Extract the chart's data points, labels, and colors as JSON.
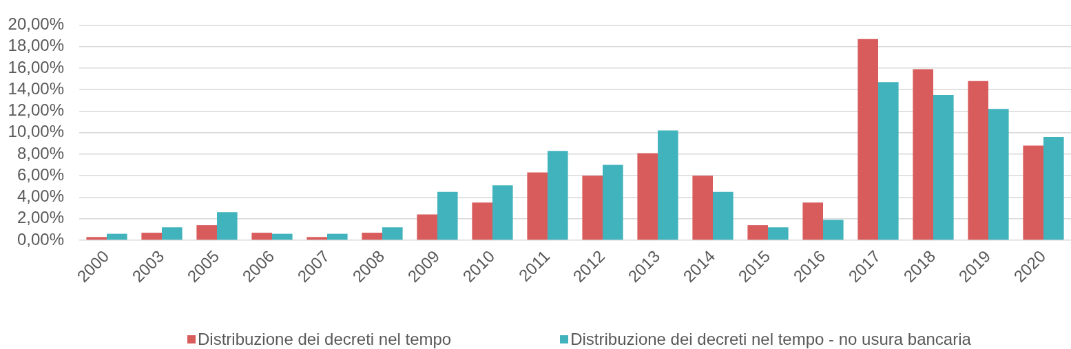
{
  "chart_data": {
    "type": "bar",
    "categories": [
      "2000",
      "2003",
      "2005",
      "2006",
      "2007",
      "2008",
      "2009",
      "2010",
      "2011",
      "2012",
      "2013",
      "2014",
      "2015",
      "2016",
      "2017",
      "2018",
      "2019",
      "2020"
    ],
    "series": [
      {
        "name": "Distribuzione dei decreti nel tempo",
        "color": "#d95c5c",
        "values": [
          0.3,
          0.7,
          1.4,
          0.7,
          0.3,
          0.7,
          2.4,
          3.5,
          6.3,
          6.0,
          8.1,
          6.0,
          1.4,
          3.5,
          18.7,
          15.9,
          14.8,
          8.8
        ]
      },
      {
        "name": "Distribuzione dei decreti nel tempo - no usura bancaria",
        "color": "#41b3bd",
        "values": [
          0.6,
          1.2,
          2.6,
          0.6,
          0.6,
          1.2,
          4.5,
          5.1,
          8.3,
          7.0,
          10.2,
          4.5,
          1.2,
          1.9,
          14.7,
          13.5,
          12.2,
          9.6
        ]
      }
    ],
    "ylim": [
      0,
      20
    ],
    "yticks": [
      {
        "value": 0,
        "label": "0,00%"
      },
      {
        "value": 2,
        "label": "2,00%"
      },
      {
        "value": 4,
        "label": "4,00%"
      },
      {
        "value": 6,
        "label": "6,00%"
      },
      {
        "value": 8,
        "label": "8,00%"
      },
      {
        "value": 10,
        "label": "10,00%"
      },
      {
        "value": 12,
        "label": "12,00%"
      },
      {
        "value": 14,
        "label": "14,00%"
      },
      {
        "value": 16,
        "label": "16,00%"
      },
      {
        "value": 18,
        "label": "18,00%"
      },
      {
        "value": 20,
        "label": "20,00%"
      }
    ],
    "grid": "y",
    "legend": "bottom"
  }
}
